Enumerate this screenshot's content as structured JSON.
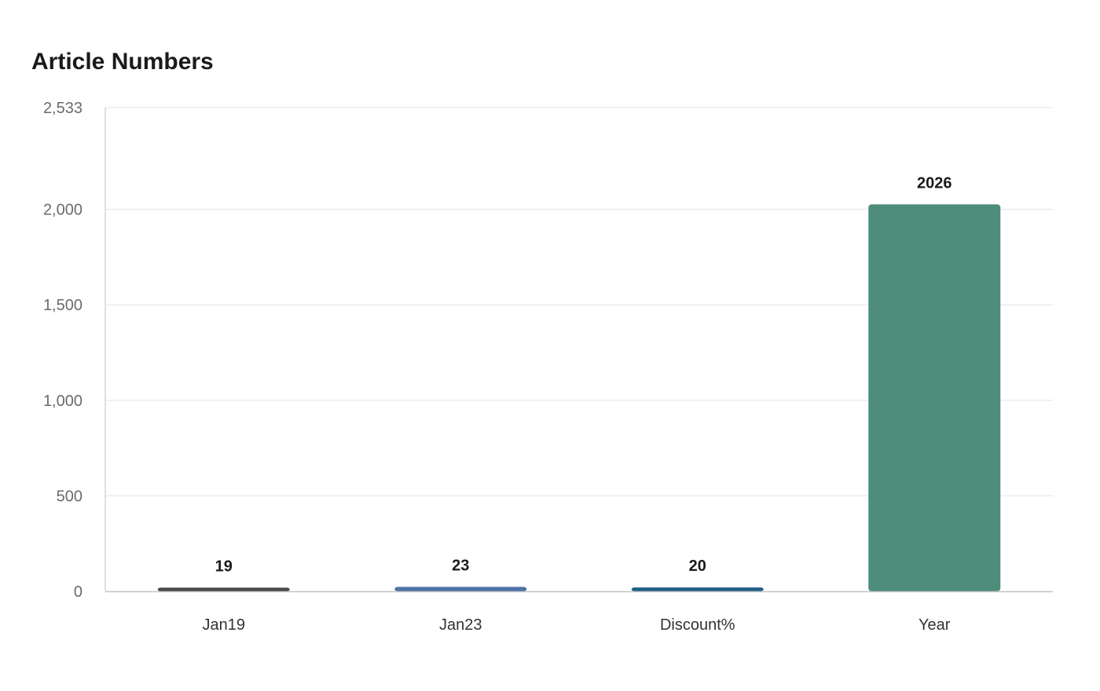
{
  "chart_data": {
    "type": "bar",
    "title": "Article Numbers",
    "categories": [
      "Jan19",
      "Jan23",
      "Discount%",
      "Year"
    ],
    "values": [
      19,
      23,
      20,
      2026
    ],
    "data_labels": [
      "19",
      "23",
      "20",
      "2026"
    ],
    "colors": [
      "#4a4a4a",
      "#4e72a6",
      "#1f5f86",
      "#4e8d7b"
    ],
    "ylim": [
      0,
      2533
    ],
    "yticks": [
      0,
      500,
      1000,
      1500,
      2000,
      2533
    ],
    "ytick_labels": [
      "0",
      "500",
      "1,000",
      "1,500",
      "2,000",
      "2,533"
    ],
    "xlabel": "",
    "ylabel": "",
    "grid": true,
    "legend": "none"
  }
}
